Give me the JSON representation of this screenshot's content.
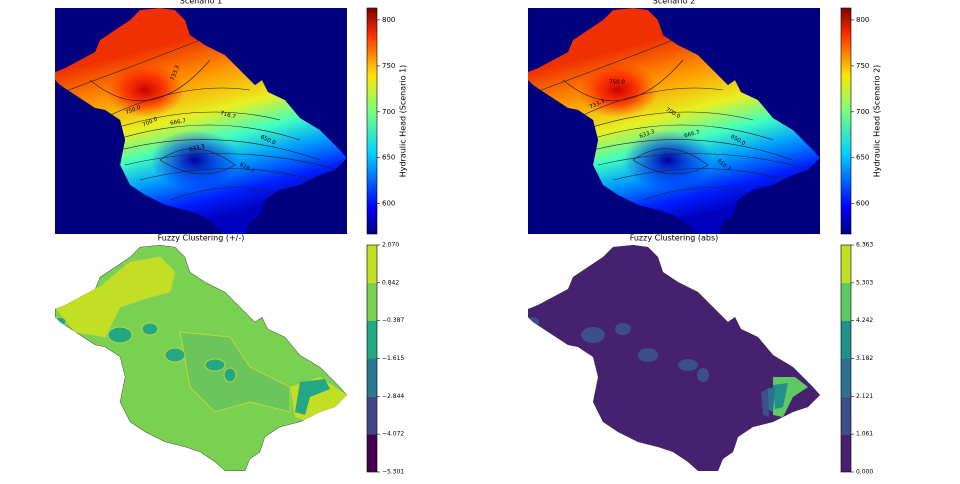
{
  "chart_data": [
    {
      "type": "contour",
      "title": "Scenario 1",
      "colormap": "jet",
      "colorbar_label": "Hydraulic Head (Scenario 1)",
      "clim": [
        567,
        813
      ],
      "cticks": [
        600,
        650,
        700,
        750,
        800
      ],
      "contour_labels": [
        "733.3",
        "750.0",
        "700.0",
        "666.7",
        "716.7",
        "650.0",
        "633.3",
        "616.7"
      ]
    },
    {
      "type": "contour",
      "title": "Scenario 2",
      "colormap": "jet",
      "colorbar_label": "Hydraulic Head (Scenario 2)",
      "clim": [
        567,
        813
      ],
      "cticks": [
        600,
        650,
        700,
        750,
        800
      ],
      "contour_labels": [
        "750.0",
        "733.3",
        "700.0",
        "666.7",
        "650.0",
        "633.3",
        "616.7"
      ]
    },
    {
      "type": "filled_contour",
      "title": "Fuzzy Clustering (+/-)",
      "colors": [
        "#440154",
        "#414487",
        "#2a788e",
        "#22a884",
        "#7ad151",
        "#c2df23"
      ],
      "cticks": [
        {
          "value": -5.301,
          "label": "−5.301"
        },
        {
          "value": -4.072,
          "label": "−4.072"
        },
        {
          "value": -2.844,
          "label": "−2.844"
        },
        {
          "value": -1.615,
          "label": "−1.615"
        },
        {
          "value": -0.387,
          "label": "−0.387"
        },
        {
          "value": 0.842,
          "label": "0.842"
        },
        {
          "value": 2.07,
          "label": "2.070"
        }
      ]
    },
    {
      "type": "filled_contour",
      "title": "Fuzzy Clustering (abs)",
      "colors": [
        "#46216f",
        "#3b4f8a",
        "#2c728e",
        "#21918c",
        "#5ec962",
        "#c2df23"
      ],
      "cticks": [
        {
          "value": 0,
          "label": "0.000"
        },
        {
          "value": 1.061,
          "label": "1.061"
        },
        {
          "value": 2.121,
          "label": "2.121"
        },
        {
          "value": 3.182,
          "label": "3.182"
        },
        {
          "value": 4.242,
          "label": "4.242"
        },
        {
          "value": 5.303,
          "label": "5.303"
        },
        {
          "value": 6.363,
          "label": "6.363"
        }
      ]
    }
  ]
}
